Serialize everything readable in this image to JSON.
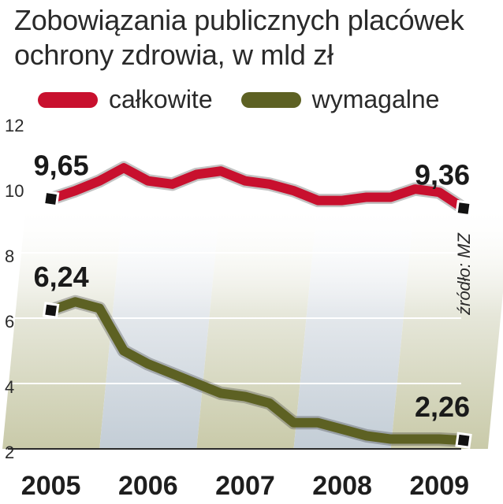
{
  "chart_data": {
    "type": "line",
    "title_lines": [
      "Zobowiązania publicznych placówek",
      "ochrony zdrowia, w mld zł"
    ],
    "x": [
      2005,
      2005.25,
      2005.5,
      2005.75,
      2006,
      2006.25,
      2006.5,
      2006.75,
      2007,
      2007.25,
      2007.5,
      2007.75,
      2008,
      2008.25,
      2008.5,
      2008.75,
      2009,
      2009.25
    ],
    "x_tick_labels": [
      "2005",
      "2006",
      "2007",
      "2008",
      "2009"
    ],
    "y_ticks": [
      "2",
      "4",
      "6",
      "8",
      "10",
      "12"
    ],
    "ylim": [
      2,
      12
    ],
    "series": [
      {
        "name": "całkowite",
        "color": "#c8102e",
        "values": [
          9.65,
          9.9,
          10.2,
          10.6,
          10.2,
          10.1,
          10.4,
          10.5,
          10.2,
          10.1,
          9.9,
          9.6,
          9.6,
          9.7,
          9.7,
          9.95,
          9.85,
          9.36
        ],
        "start_label": "9,65",
        "end_label": "9,36"
      },
      {
        "name": "wymagalne",
        "color": "#5d6123",
        "values": [
          6.24,
          6.5,
          6.3,
          5.0,
          4.6,
          4.3,
          4.0,
          3.7,
          3.6,
          3.4,
          2.8,
          2.8,
          2.6,
          2.4,
          2.3,
          2.3,
          2.3,
          2.26
        ],
        "start_label": "6,24",
        "end_label": "2,26"
      }
    ],
    "source": "źródło: MZ"
  }
}
